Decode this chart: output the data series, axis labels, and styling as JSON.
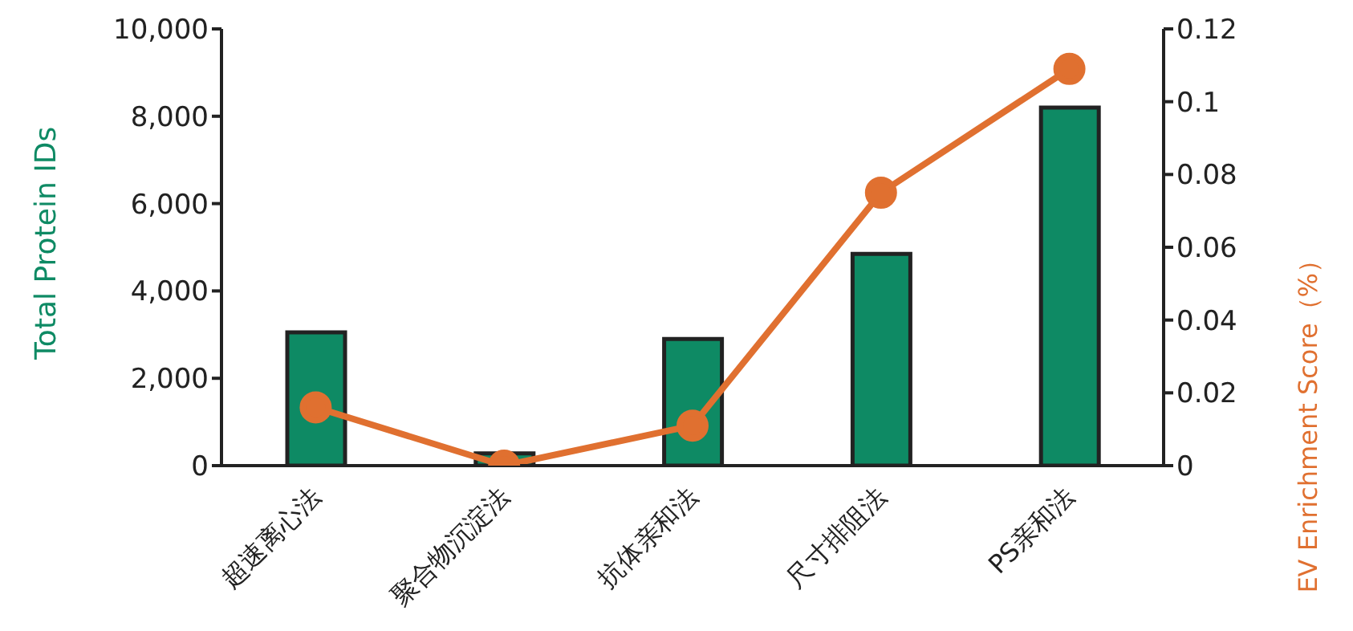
{
  "chart_data": {
    "type": "bar",
    "categories": [
      "超速离心法",
      "聚合物沉淀法",
      "抗体亲和法",
      "尺寸排阻法",
      "PS亲和法"
    ],
    "ylabel": "Total Protein IDs",
    "y2label": "EV Enrichment Score（%）",
    "ylim": [
      0,
      10000
    ],
    "yticks": [
      {
        "value": 0,
        "label": "0"
      },
      {
        "value": 2000,
        "label": "2,000"
      },
      {
        "value": 4000,
        "label": "4,000"
      },
      {
        "value": 6000,
        "label": "6,000"
      },
      {
        "value": 8000,
        "label": "8,000"
      },
      {
        "value": 10000,
        "label": "10,000"
      }
    ],
    "y2lim": [
      0,
      0.12
    ],
    "y2ticks": [
      0,
      0.02,
      0.04,
      0.06,
      0.08,
      0.1,
      0.12
    ],
    "grid": false,
    "legend": false,
    "marker": "circle",
    "series": [
      {
        "color": "#0e8a64",
        "values": [
          3050,
          280,
          2900,
          4850,
          8200
        ]
      },
      {
        "type": "line",
        "axis": "y2",
        "color": "#e07030",
        "values": [
          0.016,
          0.0,
          0.011,
          0.075,
          0.109
        ]
      }
    ]
  }
}
